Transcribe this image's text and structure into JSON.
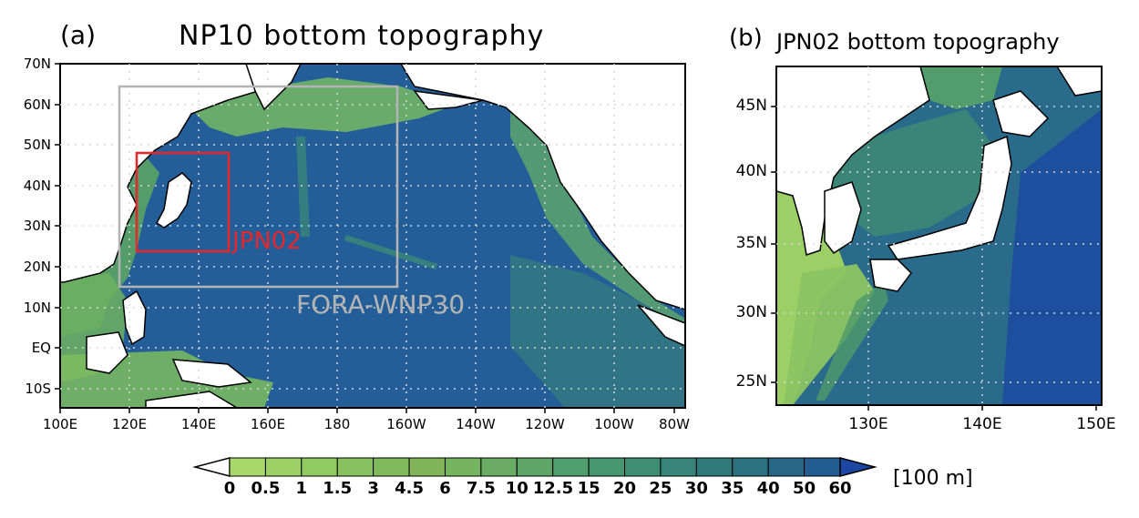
{
  "panel_a": {
    "label": "(a)",
    "title": "NP10 bottom topography",
    "y_ticks": [
      "70N",
      "60N",
      "50N",
      "40N",
      "30N",
      "20N",
      "10N",
      "EQ",
      "10S"
    ],
    "x_ticks": [
      "100E",
      "120E",
      "140E",
      "160E",
      "180",
      "160W",
      "140W",
      "120W",
      "100W",
      "80W"
    ],
    "box_labels": {
      "red": "JPN02",
      "gray": "FORA-WNP30"
    },
    "colors": {
      "red_box": "#e8262a",
      "gray_box": "#b4b4b4"
    }
  },
  "panel_b": {
    "label": "(b)",
    "title": "JPN02 bottom topography",
    "y_ticks": [
      "45N",
      "40N",
      "35N",
      "30N",
      "25N"
    ],
    "x_ticks": [
      "130E",
      "140E",
      "150E"
    ]
  },
  "colorbar": {
    "labels": [
      "0",
      "0.5",
      "1",
      "1.5",
      "3",
      "4.5",
      "6",
      "7.5",
      "10",
      "12.5",
      "15",
      "20",
      "25",
      "30",
      "35",
      "40",
      "50",
      "60"
    ],
    "unit": "[100 m]",
    "colors": [
      "#a8d86c",
      "#9dd165",
      "#92ca62",
      "#88c25f",
      "#7fb95c",
      "#82b55a",
      "#75b45f",
      "#6aac63",
      "#5ea567",
      "#509e6b",
      "#46966f",
      "#3d8e73",
      "#378478",
      "#317a7c",
      "#2d7181",
      "#286787",
      "#235c8e",
      "#1f5299",
      "#1b47a3"
    ],
    "under_color": "#ffffff",
    "over_color": "#1b47a3"
  }
}
